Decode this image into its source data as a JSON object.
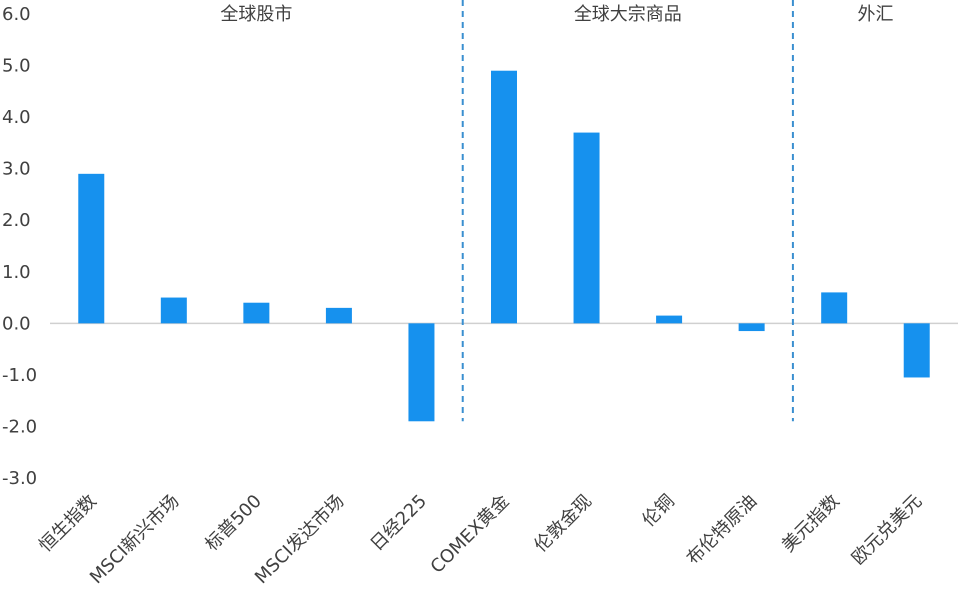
{
  "chart_data": {
    "type": "bar",
    "categories": [
      "恒生指数",
      "MSCI新兴市场",
      "标普500",
      "MSCI发达市场",
      "日经225",
      "COMEX黄金",
      "伦敦金现",
      "伦铜",
      "布伦特原油",
      "美元指数",
      "欧元兑美元"
    ],
    "values": [
      2.9,
      0.5,
      0.4,
      0.3,
      -1.9,
      4.9,
      3.7,
      0.15,
      -0.15,
      0.6,
      -1.05
    ],
    "groups": [
      {
        "label": "全球股市",
        "count": 5
      },
      {
        "label": "全球大宗商品",
        "count": 4
      },
      {
        "label": "外汇",
        "count": 2
      }
    ],
    "yticks": [
      "6.0",
      "5.0",
      "4.0",
      "3.0",
      "2.0",
      "1.0",
      "0.0",
      "-1.0",
      "-2.0",
      "-3.0"
    ],
    "ylim": [
      -3,
      6
    ],
    "bar_color": "#1691ee",
    "divider_color": "#3a8fd0",
    "axis_color": "#d0d0d0",
    "grid": false,
    "legend": "none"
  }
}
